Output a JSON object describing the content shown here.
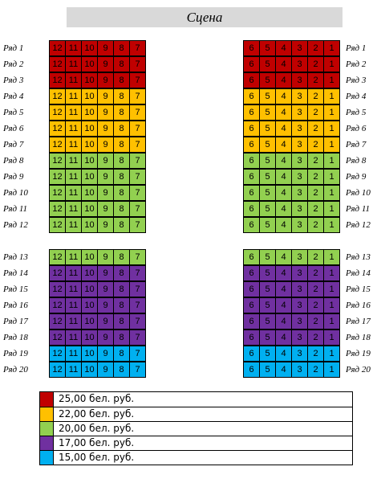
{
  "stage": {
    "label": "Сцена"
  },
  "row_prefix": "Ряд",
  "left_seat_numbers": [
    "12",
    "11",
    "10",
    "9",
    "8",
    "7"
  ],
  "right_seat_numbers": [
    "6",
    "5",
    "4",
    "3",
    "2",
    "1"
  ],
  "sections": [
    {
      "rows": [
        {
          "label": "Ряд 1",
          "tier": "red"
        },
        {
          "label": "Ряд 2",
          "tier": "red"
        },
        {
          "label": "Ряд 3",
          "tier": "red"
        },
        {
          "label": "Ряд 4",
          "tier": "orange"
        },
        {
          "label": "Ряд 5",
          "tier": "orange"
        },
        {
          "label": "Ряд 6",
          "tier": "orange"
        },
        {
          "label": "Ряд 7",
          "tier": "orange"
        },
        {
          "label": "Ряд 8",
          "tier": "green"
        },
        {
          "label": "Ряд 9",
          "tier": "green"
        },
        {
          "label": "Ряд 10",
          "tier": "green"
        },
        {
          "label": "Ряд 11",
          "tier": "green"
        },
        {
          "label": "Ряд 12",
          "tier": "green"
        }
      ]
    },
    {
      "rows": [
        {
          "label": "Ряд 13",
          "tier": "green"
        },
        {
          "label": "Ряд 14",
          "tier": "purple"
        },
        {
          "label": "Ряд 15",
          "tier": "purple"
        },
        {
          "label": "Ряд 16",
          "tier": "purple"
        },
        {
          "label": "Ряд 17",
          "tier": "purple"
        },
        {
          "label": "Ряд 18",
          "tier": "purple"
        },
        {
          "label": "Ряд 19",
          "tier": "blue"
        },
        {
          "label": "Ряд 20",
          "tier": "blue"
        }
      ]
    }
  ],
  "colors": {
    "red": "#c00000",
    "orange": "#ffc000",
    "green": "#92d050",
    "purple": "#7030a0",
    "blue": "#00b0f0"
  },
  "legend": [
    {
      "tier": "red",
      "price": "25,00 бел. руб."
    },
    {
      "tier": "orange",
      "price": "22,00 бел. руб."
    },
    {
      "tier": "green",
      "price": "20,00 бел. руб."
    },
    {
      "tier": "purple",
      "price": "17,00 бел. руб."
    },
    {
      "tier": "blue",
      "price": "15,00 бел. руб."
    }
  ]
}
